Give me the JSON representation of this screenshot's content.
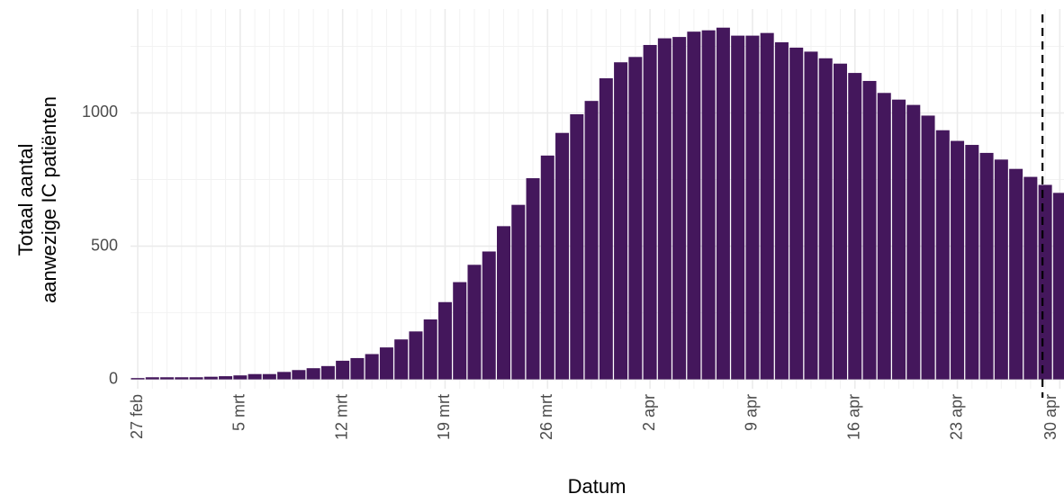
{
  "chart_data": {
    "type": "bar",
    "x_label": "Datum",
    "y_label": [
      "Totaal aantal",
      "aanwezige IC patiënten"
    ],
    "categories": [
      "27 feb",
      null,
      null,
      null,
      null,
      null,
      null,
      "5 mrt",
      null,
      null,
      null,
      null,
      null,
      null,
      "12 mrt",
      null,
      null,
      null,
      null,
      null,
      null,
      "19 mrt",
      null,
      null,
      null,
      null,
      null,
      null,
      "26 mrt",
      null,
      null,
      null,
      null,
      null,
      null,
      "2 apr",
      null,
      null,
      null,
      null,
      null,
      null,
      "9 apr",
      null,
      null,
      null,
      null,
      null,
      null,
      "16 apr",
      null,
      null,
      null,
      null,
      null,
      null,
      "23 apr",
      null,
      null,
      null,
      null,
      null,
      null,
      "30 apr"
    ],
    "values": [
      5,
      8,
      8,
      8,
      8,
      10,
      12,
      15,
      20,
      20,
      28,
      35,
      42,
      50,
      70,
      80,
      95,
      120,
      150,
      180,
      225,
      290,
      365,
      430,
      480,
      575,
      655,
      755,
      840,
      925,
      995,
      1045,
      1130,
      1190,
      1210,
      1255,
      1280,
      1285,
      1305,
      1310,
      1320,
      1290,
      1290,
      1300,
      1265,
      1245,
      1230,
      1205,
      1185,
      1150,
      1120,
      1075,
      1050,
      1030,
      990,
      935,
      895,
      880,
      850,
      825,
      790,
      760,
      730,
      700
    ],
    "color": "#44175c",
    "ylim": [
      -35,
      1390
    ],
    "yticks": [
      0,
      500,
      1000
    ],
    "minor_yticks": [
      250,
      750,
      1250
    ],
    "grid": true,
    "vline_category_index": 62
  }
}
